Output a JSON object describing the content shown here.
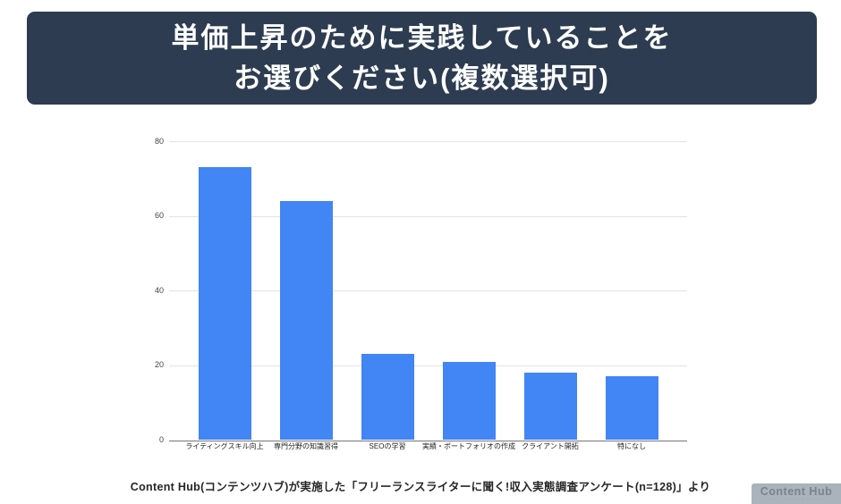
{
  "banner": {
    "title_line1": "単価上昇のために実践していることを",
    "title_line2": "お選びください(複数選択可)",
    "bg_color": "#2d3c50",
    "text_color": "#ffffff"
  },
  "chart_data": {
    "type": "bar",
    "categories": [
      "ライティングスキル向上",
      "専門分野の知識習得",
      "SEOの学習",
      "実績・ポートフォリオの作成",
      "クライアント開拓",
      "特になし"
    ],
    "values": [
      73,
      64,
      23,
      21,
      18,
      17
    ],
    "title": "",
    "xlabel": "",
    "ylabel": "",
    "ylim": [
      0,
      80
    ],
    "y_ticks": [
      0,
      20,
      40,
      60,
      80
    ],
    "grid": true,
    "legend": "none",
    "bar_color": "#4285f4"
  },
  "caption": {
    "text": "Content Hub(コンテンツハブ)が実施した「フリーランスライターに聞く!収入実態調査アンケート(n=128)」より"
  },
  "logo": {
    "name": "Content Hub",
    "tagline": "・・・・・・・・・・・・",
    "bg_color": "#aab3bb",
    "text_color": "#78838c",
    "tagline_color": "#8f99a1"
  }
}
